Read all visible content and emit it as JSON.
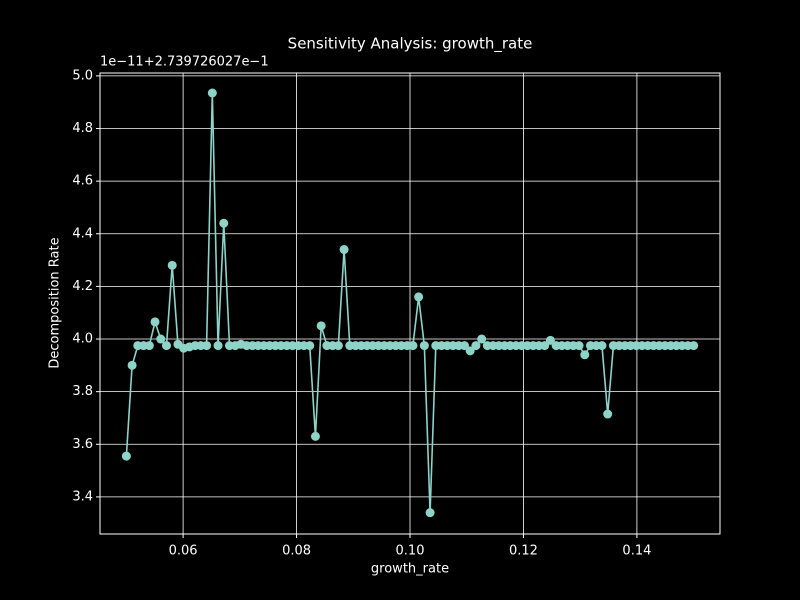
{
  "chart_data": {
    "type": "line",
    "title": "Sensitivity Analysis: growth_rate",
    "xlabel": "growth_rate",
    "ylabel": "Decomposition Rate",
    "y_offset_text": "1e−11+2.739726027e−1",
    "x": [
      0.05,
      0.05101,
      0.05202,
      0.05303,
      0.05404,
      0.05505,
      0.05606,
      0.05707,
      0.05808,
      0.05909,
      0.0601,
      0.06111,
      0.06212,
      0.06313,
      0.06414,
      0.06515,
      0.06616,
      0.06717,
      0.06818,
      0.06919,
      0.0702,
      0.07121,
      0.07222,
      0.07323,
      0.07424,
      0.07525,
      0.07626,
      0.07727,
      0.07828,
      0.07929,
      0.0803,
      0.08131,
      0.08232,
      0.08333,
      0.08434,
      0.08535,
      0.08636,
      0.08737,
      0.08838,
      0.08939,
      0.0904,
      0.09141,
      0.09242,
      0.09343,
      0.09444,
      0.09545,
      0.09646,
      0.09747,
      0.09848,
      0.09949,
      0.10051,
      0.10152,
      0.10253,
      0.10354,
      0.10455,
      0.10556,
      0.10657,
      0.10758,
      0.10859,
      0.1096,
      0.11061,
      0.11162,
      0.11263,
      0.11364,
      0.11465,
      0.11566,
      0.11667,
      0.11768,
      0.11869,
      0.1197,
      0.12071,
      0.12172,
      0.12273,
      0.12374,
      0.12475,
      0.12576,
      0.12677,
      0.12778,
      0.12879,
      0.1298,
      0.13081,
      0.13182,
      0.13283,
      0.13384,
      0.13485,
      0.13586,
      0.13687,
      0.13788,
      0.13889,
      0.1399,
      0.14091,
      0.14192,
      0.14293,
      0.14394,
      0.14495,
      0.14596,
      0.14697,
      0.14798,
      0.14899,
      0.15
    ],
    "series": [
      {
        "name": "growth_rate",
        "color": "#8dd3c7",
        "values": [
          3.555,
          3.9,
          3.975,
          3.975,
          3.975,
          4.065,
          4.0,
          3.975,
          4.28,
          3.98,
          3.965,
          3.97,
          3.975,
          3.975,
          3.975,
          4.935,
          3.975,
          4.44,
          3.975,
          3.975,
          3.98,
          3.975,
          3.975,
          3.975,
          3.975,
          3.975,
          3.975,
          3.975,
          3.975,
          3.975,
          3.975,
          3.975,
          3.975,
          3.63,
          4.05,
          3.975,
          3.975,
          3.975,
          4.34,
          3.975,
          3.975,
          3.975,
          3.975,
          3.975,
          3.975,
          3.975,
          3.975,
          3.975,
          3.975,
          3.975,
          3.975,
          4.16,
          3.975,
          3.34,
          3.975,
          3.975,
          3.975,
          3.975,
          3.975,
          3.975,
          3.955,
          3.975,
          4.0,
          3.975,
          3.975,
          3.975,
          3.975,
          3.975,
          3.975,
          3.975,
          3.975,
          3.975,
          3.975,
          3.975,
          3.995,
          3.975,
          3.975,
          3.975,
          3.975,
          3.975,
          3.94,
          3.975,
          3.975,
          3.975,
          3.715,
          3.975,
          3.975,
          3.975,
          3.975,
          3.975,
          3.975,
          3.975,
          3.975,
          3.975,
          3.975,
          3.975,
          3.975,
          3.975,
          3.975,
          3.975
        ]
      }
    ],
    "xlim": [
      0.04535,
      0.15465
    ],
    "ylim": [
      3.259,
      5.011
    ],
    "xticks": [
      0.06,
      0.08,
      {
        "value": 0.1,
        "label": "0.10"
      },
      0.12,
      0.14
    ],
    "yticks": [
      3.4,
      3.6,
      3.8,
      {
        "value": 4,
        "label": "4.0"
      },
      4.2,
      4.4,
      4.6,
      4.8,
      {
        "value": 5,
        "label": "5.0"
      }
    ],
    "grid": true
  }
}
